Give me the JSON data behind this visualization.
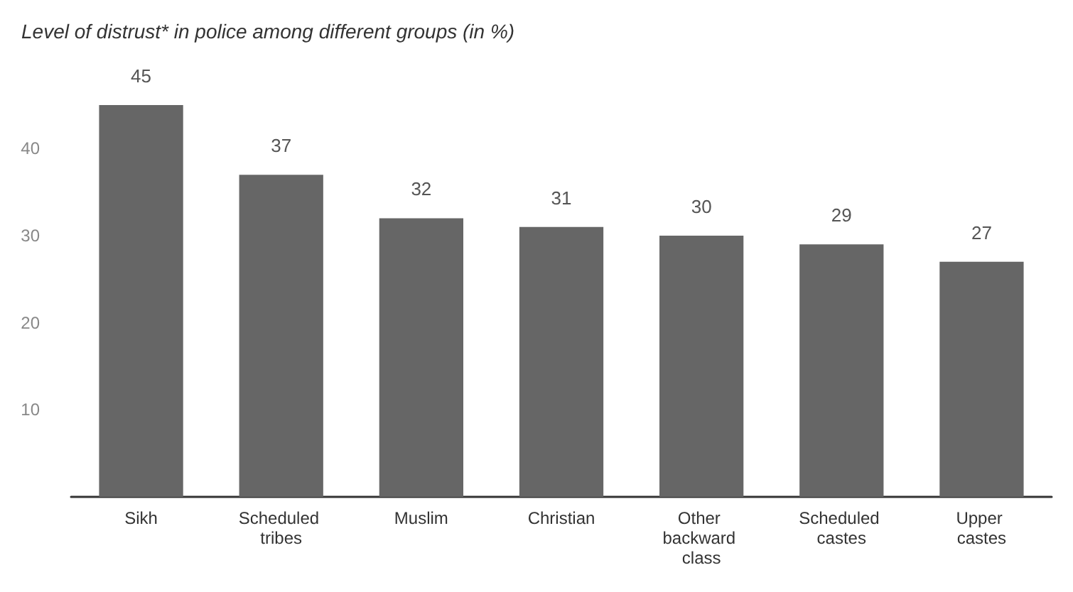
{
  "chart_data": {
    "type": "bar",
    "title": "Level of distrust* in police among different groups (in %)",
    "categories": [
      "Sikh",
      "Scheduled tribes",
      "Muslim",
      "Christian",
      "Other backward class",
      "Scheduled castes",
      "Upper castes"
    ],
    "values": [
      45,
      37,
      32,
      31,
      30,
      29,
      27
    ],
    "color": "#666666",
    "ylim": [
      0,
      45
    ],
    "yticks": [
      10,
      20,
      30,
      40
    ],
    "grid": false,
    "data_labels": true
  }
}
